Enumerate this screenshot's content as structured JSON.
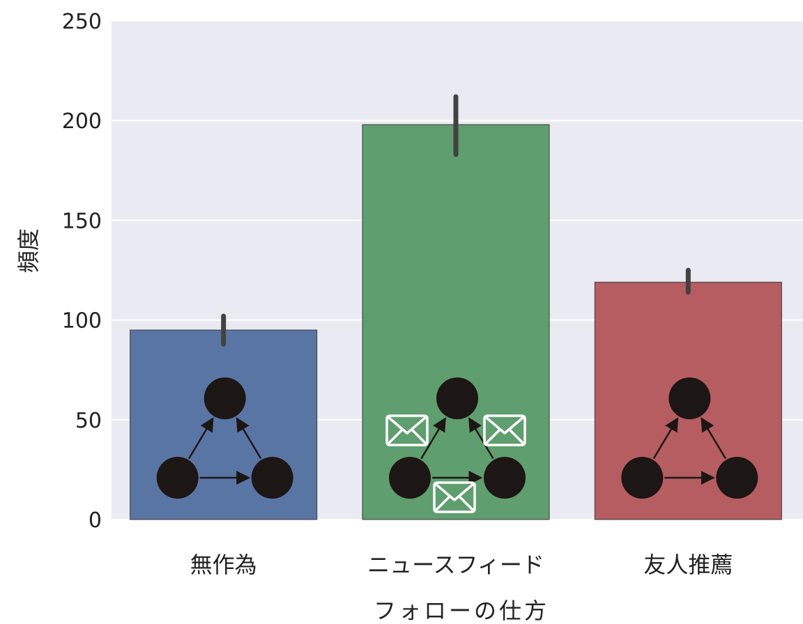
{
  "chart_data": {
    "type": "bar",
    "title": "",
    "xlabel": "フォローの仕方",
    "ylabel": "頻度",
    "categories": [
      "無作為",
      "ニュースフィード",
      "友人推薦"
    ],
    "values": [
      95,
      198,
      119
    ],
    "error_bars": [
      [
        88,
        102
      ],
      [
        183,
        212
      ],
      [
        114,
        125
      ]
    ],
    "ylim": [
      0,
      250
    ],
    "yticks": [
      "0",
      "50",
      "100",
      "150",
      "200",
      "250"
    ],
    "grid": true,
    "bar_colors": [
      "#5975a4",
      "#5f9e6e",
      "#b55d60"
    ],
    "background_color": "#eaeaf2",
    "icons": [
      "triangle-network-icon",
      "triangle-network-with-envelopes-icon",
      "triangle-network-icon"
    ]
  }
}
